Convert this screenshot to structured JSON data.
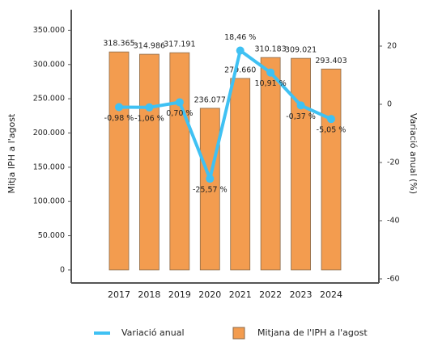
{
  "chart_data": {
    "type": "bar_line",
    "y_label": "Mitja IPH a l'agost",
    "y2_label": "Variació anual (%)",
    "categories": [
      "2017",
      "2018",
      "2019",
      "2020",
      "2021",
      "2022",
      "2023",
      "2024"
    ],
    "series": [
      {
        "name": "Mitjana de l'IPH a l'agost",
        "color": "#f39c4f",
        "type": "bar",
        "values": [
          318365,
          314986,
          317191,
          236077,
          279660,
          310183,
          309021,
          293403
        ],
        "value_labels": [
          "318.365",
          "314.986",
          "317.191",
          "236.077",
          "279.660",
          "310.183",
          "309.021",
          "293.403"
        ]
      },
      {
        "name": "Variació anual",
        "color": "#3fc1f3",
        "type": "line",
        "axis": "y2",
        "values": [
          -0.98,
          -1.06,
          0.7,
          -25.57,
          18.46,
          10.91,
          -0.37,
          -5.05
        ],
        "value_labels": [
          "-0,98 %",
          "-1,06 %",
          "0,70 %",
          "-25,57 %",
          "18,46 %",
          "10,91 %",
          "-0,37 %",
          "-5,05 %"
        ]
      }
    ],
    "ylim": [
      -19000,
      380000
    ],
    "yticks": [
      {
        "value": 0,
        "label": "0"
      },
      {
        "value": 50000,
        "label": "50.000"
      },
      {
        "value": 100000,
        "label": "100.000"
      },
      {
        "value": 150000,
        "label": "150.000"
      },
      {
        "value": 200000,
        "label": "200.000"
      },
      {
        "value": 250000,
        "label": "250.000"
      },
      {
        "value": 300000,
        "label": "300.000"
      },
      {
        "value": 350000,
        "label": "350.000"
      }
    ],
    "y2lim": [
      -61.4,
      32.5
    ],
    "y2ticks": [
      20,
      0,
      -20,
      -40,
      -60
    ],
    "legend": "bottom"
  }
}
